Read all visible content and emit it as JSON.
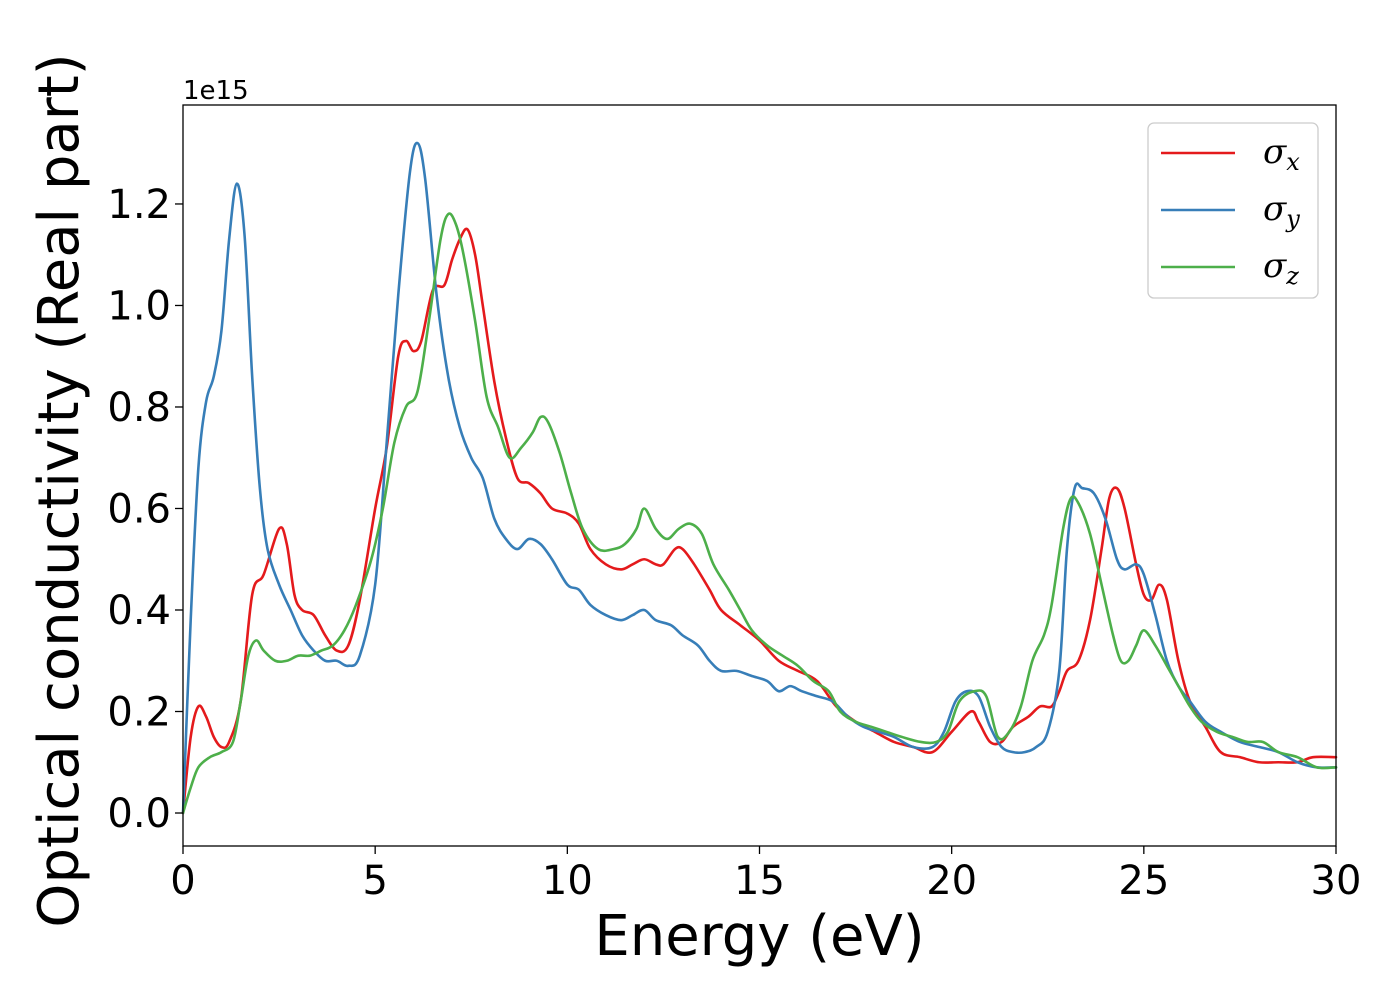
{
  "chart_data": {
    "type": "line",
    "xlabel": "Energy (eV)",
    "ylabel": "Optical conductivity (Real part)",
    "y_offset_label": "1e15",
    "xlim": [
      0,
      30
    ],
    "ylim": [
      -0.065,
      1.395
    ],
    "xticks": [
      0,
      5,
      10,
      15,
      20,
      25,
      30
    ],
    "xtick_labels": [
      "0",
      "5",
      "10",
      "15",
      "20",
      "25",
      "30"
    ],
    "yticks": [
      0.0,
      0.2,
      0.4,
      0.6,
      0.8,
      1.0,
      1.2
    ],
    "ytick_labels": [
      "0.0",
      "0.2",
      "0.4",
      "0.6",
      "0.8",
      "1.0",
      "1.2"
    ],
    "grid": false,
    "legend_position": "top-right",
    "series": [
      {
        "name": "σx",
        "sym": "σ",
        "sub": "x",
        "color": "#e41a1c",
        "points": [
          [
            0,
            0
          ],
          [
            0.2,
            0.15
          ],
          [
            0.4,
            0.21
          ],
          [
            0.6,
            0.19
          ],
          [
            0.8,
            0.15
          ],
          [
            1.0,
            0.13
          ],
          [
            1.2,
            0.14
          ],
          [
            1.5,
            0.22
          ],
          [
            1.8,
            0.43
          ],
          [
            2.1,
            0.47
          ],
          [
            2.5,
            0.56
          ],
          [
            2.7,
            0.53
          ],
          [
            2.9,
            0.43
          ],
          [
            3.1,
            0.4
          ],
          [
            3.4,
            0.39
          ],
          [
            3.7,
            0.35
          ],
          [
            4.0,
            0.32
          ],
          [
            4.3,
            0.33
          ],
          [
            4.6,
            0.42
          ],
          [
            5.0,
            0.6
          ],
          [
            5.3,
            0.72
          ],
          [
            5.6,
            0.9
          ],
          [
            5.8,
            0.93
          ],
          [
            6.0,
            0.91
          ],
          [
            6.2,
            0.93
          ],
          [
            6.5,
            1.03
          ],
          [
            6.8,
            1.04
          ],
          [
            7.0,
            1.09
          ],
          [
            7.2,
            1.13
          ],
          [
            7.4,
            1.15
          ],
          [
            7.6,
            1.1
          ],
          [
            7.8,
            1.0
          ],
          [
            8.1,
            0.85
          ],
          [
            8.4,
            0.74
          ],
          [
            8.7,
            0.66
          ],
          [
            9.0,
            0.65
          ],
          [
            9.3,
            0.63
          ],
          [
            9.6,
            0.6
          ],
          [
            10.0,
            0.59
          ],
          [
            10.3,
            0.57
          ],
          [
            10.6,
            0.52
          ],
          [
            11.0,
            0.49
          ],
          [
            11.4,
            0.48
          ],
          [
            11.7,
            0.49
          ],
          [
            12.0,
            0.5
          ],
          [
            12.3,
            0.49
          ],
          [
            12.5,
            0.49
          ],
          [
            12.8,
            0.52
          ],
          [
            13.0,
            0.52
          ],
          [
            13.3,
            0.49
          ],
          [
            13.7,
            0.44
          ],
          [
            14.0,
            0.4
          ],
          [
            14.5,
            0.37
          ],
          [
            15.0,
            0.34
          ],
          [
            15.5,
            0.3
          ],
          [
            16.0,
            0.28
          ],
          [
            16.5,
            0.26
          ],
          [
            17.0,
            0.21
          ],
          [
            17.5,
            0.18
          ],
          [
            18.0,
            0.16
          ],
          [
            18.5,
            0.14
          ],
          [
            19.0,
            0.13
          ],
          [
            19.5,
            0.12
          ],
          [
            20.0,
            0.16
          ],
          [
            20.5,
            0.2
          ],
          [
            20.7,
            0.18
          ],
          [
            21.0,
            0.14
          ],
          [
            21.3,
            0.14
          ],
          [
            21.6,
            0.17
          ],
          [
            22.0,
            0.19
          ],
          [
            22.3,
            0.21
          ],
          [
            22.6,
            0.21
          ],
          [
            22.8,
            0.24
          ],
          [
            23.0,
            0.28
          ],
          [
            23.3,
            0.3
          ],
          [
            23.6,
            0.38
          ],
          [
            23.9,
            0.52
          ],
          [
            24.1,
            0.62
          ],
          [
            24.3,
            0.64
          ],
          [
            24.5,
            0.6
          ],
          [
            24.8,
            0.49
          ],
          [
            25.0,
            0.43
          ],
          [
            25.2,
            0.42
          ],
          [
            25.4,
            0.45
          ],
          [
            25.6,
            0.42
          ],
          [
            25.9,
            0.3
          ],
          [
            26.2,
            0.22
          ],
          [
            26.6,
            0.17
          ],
          [
            27.0,
            0.12
          ],
          [
            27.5,
            0.11
          ],
          [
            28.0,
            0.1
          ],
          [
            28.5,
            0.1
          ],
          [
            29.0,
            0.1
          ],
          [
            29.4,
            0.11
          ],
          [
            30.0,
            0.11
          ]
        ]
      },
      {
        "name": "σy",
        "sym": "σ",
        "sub": "y",
        "color": "#377eb8",
        "points": [
          [
            0,
            0
          ],
          [
            0.2,
            0.38
          ],
          [
            0.4,
            0.68
          ],
          [
            0.6,
            0.81
          ],
          [
            0.8,
            0.86
          ],
          [
            1.0,
            0.95
          ],
          [
            1.2,
            1.13
          ],
          [
            1.4,
            1.24
          ],
          [
            1.6,
            1.14
          ],
          [
            1.8,
            0.86
          ],
          [
            2.0,
            0.64
          ],
          [
            2.2,
            0.52
          ],
          [
            2.5,
            0.45
          ],
          [
            2.8,
            0.4
          ],
          [
            3.1,
            0.35
          ],
          [
            3.4,
            0.32
          ],
          [
            3.7,
            0.3
          ],
          [
            4.0,
            0.3
          ],
          [
            4.3,
            0.29
          ],
          [
            4.6,
            0.31
          ],
          [
            5.0,
            0.45
          ],
          [
            5.3,
            0.73
          ],
          [
            5.6,
            1.02
          ],
          [
            5.9,
            1.26
          ],
          [
            6.1,
            1.32
          ],
          [
            6.3,
            1.25
          ],
          [
            6.6,
            1.02
          ],
          [
            6.9,
            0.86
          ],
          [
            7.2,
            0.76
          ],
          [
            7.5,
            0.7
          ],
          [
            7.8,
            0.66
          ],
          [
            8.1,
            0.58
          ],
          [
            8.4,
            0.54
          ],
          [
            8.7,
            0.52
          ],
          [
            9.0,
            0.54
          ],
          [
            9.3,
            0.53
          ],
          [
            9.6,
            0.5
          ],
          [
            10.0,
            0.45
          ],
          [
            10.3,
            0.44
          ],
          [
            10.6,
            0.41
          ],
          [
            11.0,
            0.39
          ],
          [
            11.4,
            0.38
          ],
          [
            11.7,
            0.39
          ],
          [
            12.0,
            0.4
          ],
          [
            12.3,
            0.38
          ],
          [
            12.7,
            0.37
          ],
          [
            13.0,
            0.35
          ],
          [
            13.4,
            0.33
          ],
          [
            13.7,
            0.3
          ],
          [
            14.0,
            0.28
          ],
          [
            14.4,
            0.28
          ],
          [
            14.8,
            0.27
          ],
          [
            15.2,
            0.26
          ],
          [
            15.5,
            0.24
          ],
          [
            15.8,
            0.25
          ],
          [
            16.1,
            0.24
          ],
          [
            16.5,
            0.23
          ],
          [
            16.9,
            0.22
          ],
          [
            17.3,
            0.19
          ],
          [
            17.7,
            0.17
          ],
          [
            18.1,
            0.16
          ],
          [
            18.5,
            0.15
          ],
          [
            19.0,
            0.13
          ],
          [
            19.5,
            0.13
          ],
          [
            19.8,
            0.16
          ],
          [
            20.1,
            0.22
          ],
          [
            20.4,
            0.24
          ],
          [
            20.7,
            0.23
          ],
          [
            21.0,
            0.17
          ],
          [
            21.3,
            0.13
          ],
          [
            21.6,
            0.12
          ],
          [
            21.9,
            0.12
          ],
          [
            22.2,
            0.13
          ],
          [
            22.5,
            0.16
          ],
          [
            22.8,
            0.28
          ],
          [
            23.0,
            0.52
          ],
          [
            23.2,
            0.64
          ],
          [
            23.4,
            0.64
          ],
          [
            23.7,
            0.63
          ],
          [
            24.0,
            0.58
          ],
          [
            24.3,
            0.5
          ],
          [
            24.5,
            0.48
          ],
          [
            24.8,
            0.49
          ],
          [
            25.0,
            0.47
          ],
          [
            25.3,
            0.39
          ],
          [
            25.6,
            0.3
          ],
          [
            25.9,
            0.25
          ],
          [
            26.2,
            0.22
          ],
          [
            26.6,
            0.18
          ],
          [
            27.0,
            0.16
          ],
          [
            27.5,
            0.14
          ],
          [
            28.0,
            0.13
          ],
          [
            28.5,
            0.12
          ],
          [
            29.0,
            0.1
          ],
          [
            29.5,
            0.09
          ],
          [
            30.0,
            0.09
          ]
        ]
      },
      {
        "name": "σz",
        "sym": "σ",
        "sub": "z",
        "color": "#4daf4a",
        "points": [
          [
            0,
            0
          ],
          [
            0.2,
            0.05
          ],
          [
            0.4,
            0.09
          ],
          [
            0.7,
            0.11
          ],
          [
            1.0,
            0.12
          ],
          [
            1.3,
            0.14
          ],
          [
            1.5,
            0.22
          ],
          [
            1.7,
            0.31
          ],
          [
            1.9,
            0.34
          ],
          [
            2.1,
            0.32
          ],
          [
            2.4,
            0.3
          ],
          [
            2.7,
            0.3
          ],
          [
            3.0,
            0.31
          ],
          [
            3.3,
            0.31
          ],
          [
            3.6,
            0.32
          ],
          [
            3.9,
            0.33
          ],
          [
            4.2,
            0.36
          ],
          [
            4.5,
            0.41
          ],
          [
            4.9,
            0.5
          ],
          [
            5.2,
            0.6
          ],
          [
            5.5,
            0.73
          ],
          [
            5.8,
            0.8
          ],
          [
            6.1,
            0.83
          ],
          [
            6.4,
            0.97
          ],
          [
            6.7,
            1.13
          ],
          [
            6.9,
            1.18
          ],
          [
            7.1,
            1.16
          ],
          [
            7.3,
            1.1
          ],
          [
            7.6,
            0.97
          ],
          [
            7.9,
            0.82
          ],
          [
            8.2,
            0.76
          ],
          [
            8.5,
            0.7
          ],
          [
            8.8,
            0.72
          ],
          [
            9.1,
            0.75
          ],
          [
            9.3,
            0.78
          ],
          [
            9.5,
            0.77
          ],
          [
            9.8,
            0.71
          ],
          [
            10.1,
            0.63
          ],
          [
            10.4,
            0.56
          ],
          [
            10.8,
            0.52
          ],
          [
            11.2,
            0.52
          ],
          [
            11.5,
            0.53
          ],
          [
            11.8,
            0.56
          ],
          [
            12.0,
            0.6
          ],
          [
            12.3,
            0.56
          ],
          [
            12.6,
            0.54
          ],
          [
            12.9,
            0.56
          ],
          [
            13.2,
            0.57
          ],
          [
            13.5,
            0.55
          ],
          [
            13.8,
            0.49
          ],
          [
            14.2,
            0.44
          ],
          [
            14.5,
            0.4
          ],
          [
            14.8,
            0.36
          ],
          [
            15.2,
            0.33
          ],
          [
            15.6,
            0.31
          ],
          [
            16.0,
            0.29
          ],
          [
            16.4,
            0.26
          ],
          [
            16.8,
            0.24
          ],
          [
            17.1,
            0.2
          ],
          [
            17.5,
            0.18
          ],
          [
            17.9,
            0.17
          ],
          [
            18.3,
            0.16
          ],
          [
            18.7,
            0.15
          ],
          [
            19.2,
            0.14
          ],
          [
            19.6,
            0.14
          ],
          [
            19.9,
            0.16
          ],
          [
            20.2,
            0.22
          ],
          [
            20.6,
            0.24
          ],
          [
            20.9,
            0.23
          ],
          [
            21.2,
            0.15
          ],
          [
            21.5,
            0.16
          ],
          [
            21.8,
            0.21
          ],
          [
            22.1,
            0.3
          ],
          [
            22.4,
            0.35
          ],
          [
            22.6,
            0.41
          ],
          [
            22.9,
            0.56
          ],
          [
            23.1,
            0.62
          ],
          [
            23.3,
            0.61
          ],
          [
            23.6,
            0.55
          ],
          [
            23.9,
            0.45
          ],
          [
            24.2,
            0.35
          ],
          [
            24.4,
            0.3
          ],
          [
            24.6,
            0.3
          ],
          [
            24.8,
            0.33
          ],
          [
            25.0,
            0.36
          ],
          [
            25.3,
            0.33
          ],
          [
            25.6,
            0.29
          ],
          [
            25.9,
            0.25
          ],
          [
            26.2,
            0.21
          ],
          [
            26.5,
            0.18
          ],
          [
            26.9,
            0.16
          ],
          [
            27.3,
            0.15
          ],
          [
            27.7,
            0.14
          ],
          [
            28.1,
            0.14
          ],
          [
            28.5,
            0.12
          ],
          [
            29.0,
            0.11
          ],
          [
            29.5,
            0.09
          ],
          [
            30.0,
            0.09
          ]
        ]
      }
    ]
  }
}
